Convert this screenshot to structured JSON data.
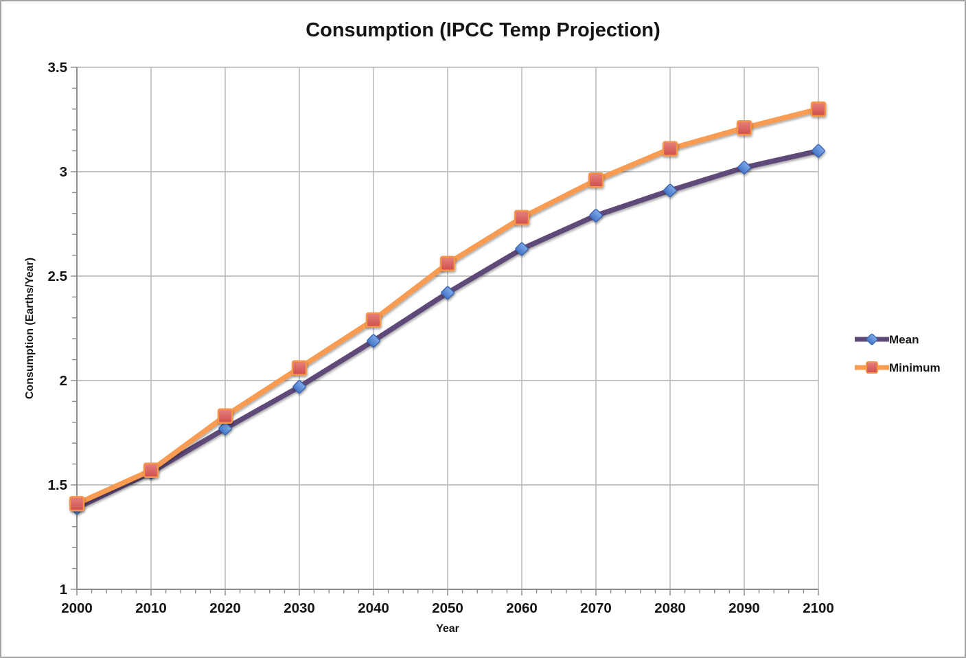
{
  "chart_data": {
    "type": "line",
    "title": "Consumption (IPCC Temp Projection)",
    "xlabel": "Year",
    "ylabel": "Consumption (Earths/Year)",
    "x": [
      2000,
      2010,
      2020,
      2030,
      2040,
      2050,
      2060,
      2070,
      2080,
      2090,
      2100
    ],
    "series": [
      {
        "name": "Mean",
        "values": [
          1.39,
          1.56,
          1.77,
          1.97,
          2.19,
          2.42,
          2.63,
          2.79,
          2.91,
          3.02,
          3.1
        ],
        "line_color": "#5e4a79",
        "marker": "diamond",
        "marker_fill_top": "#7fa9e8",
        "marker_fill_bottom": "#4577c8",
        "marker_stroke": "#3a64ad"
      },
      {
        "name": "Minimum",
        "values": [
          1.41,
          1.57,
          1.83,
          2.06,
          2.29,
          2.56,
          2.78,
          2.96,
          3.11,
          3.21,
          3.3
        ],
        "line_color": "#f89c52",
        "marker": "square",
        "marker_fill_top": "#e8817c",
        "marker_fill_bottom": "#cd4f4c",
        "marker_stroke": "#f79646"
      }
    ],
    "xlim": [
      2000,
      2100
    ],
    "ylim": [
      1,
      3.5
    ],
    "x_major_step": 10,
    "x_minor_step": 2,
    "y_major_step": 0.5,
    "y_minor_step": 0.1,
    "y_tick_labels": [
      "1",
      "1.5",
      "2",
      "2.5",
      "3",
      "3.5"
    ],
    "x_tick_labels": [
      "2000",
      "2010",
      "2020",
      "2030",
      "2040",
      "2050",
      "2060",
      "2070",
      "2080",
      "2090",
      "2100"
    ],
    "grid": true,
    "legend_position": "right",
    "colors": {
      "grid": "#b2b2b2",
      "axis": "#8e8e8e",
      "text": "#141414",
      "background": "#ffffff",
      "frame_border": "#a3a3a3"
    }
  }
}
